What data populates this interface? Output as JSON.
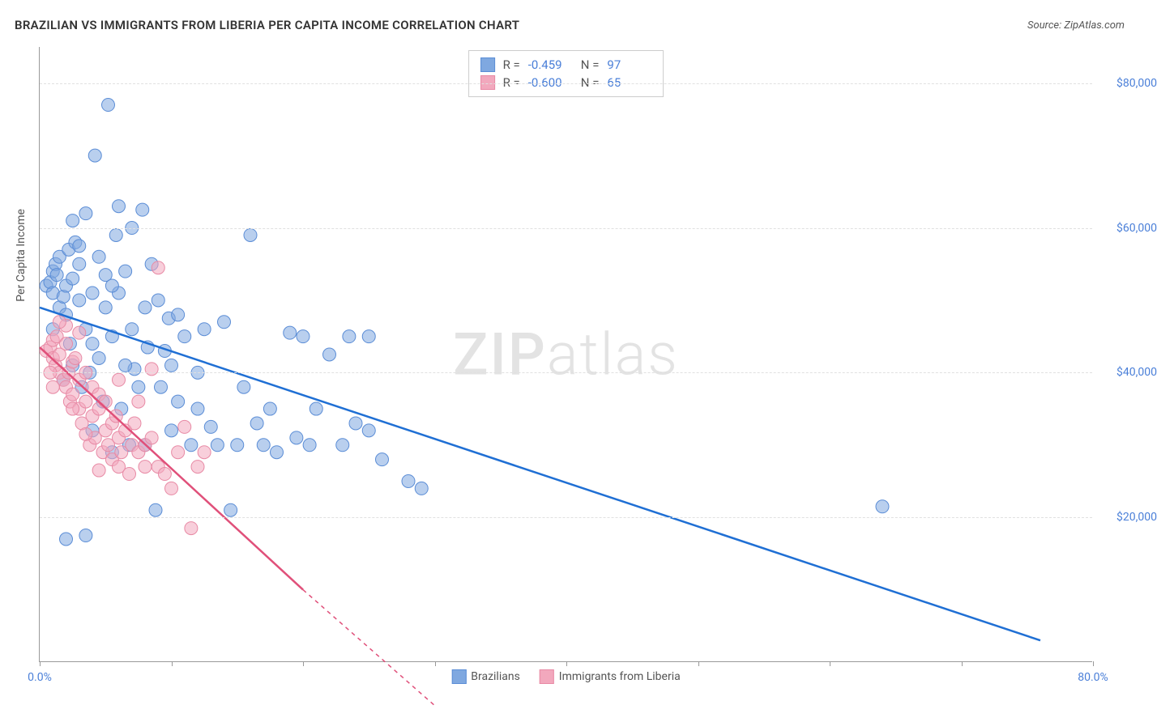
{
  "title": "BRAZILIAN VS IMMIGRANTS FROM LIBERIA PER CAPITA INCOME CORRELATION CHART",
  "source_label": "Source: ZipAtlas.com",
  "y_axis_title": "Per Capita Income",
  "watermark": {
    "part1": "ZIP",
    "part2": "atlas"
  },
  "chart": {
    "type": "scatter",
    "background_color": "#ffffff",
    "grid_color": "#e0e0e0",
    "axis_color": "#999999",
    "tick_label_color": "#4a7fd8",
    "xlim": [
      0,
      80
    ],
    "ylim": [
      0,
      85000
    ],
    "x_tick_positions": [
      0,
      10,
      20,
      30,
      40,
      50,
      60,
      70,
      80
    ],
    "x_tick_labels_shown": {
      "0": "0.0%",
      "80": "80.0%"
    },
    "y_grid_positions": [
      20000,
      40000,
      60000,
      80000
    ],
    "y_tick_labels": {
      "20000": "$20,000",
      "40000": "$40,000",
      "60000": "$60,000",
      "80000": "$80,000"
    },
    "marker_radius": 8,
    "marker_opacity": 0.55,
    "series": [
      {
        "name": "Brazilians",
        "fill_color": "#7fa8e0",
        "stroke_color": "#5b8dd6",
        "trend_color": "#1f6fd4",
        "R": "-0.459",
        "N": "97",
        "trend": {
          "x1": 0,
          "y1": 49000,
          "x2": 76,
          "y2": 3000,
          "dash_from_x": 76
        },
        "points": [
          [
            0.5,
            52000
          ],
          [
            0.8,
            52500
          ],
          [
            1.0,
            51000
          ],
          [
            1.0,
            54000
          ],
          [
            1.2,
            55000
          ],
          [
            1.3,
            53500
          ],
          [
            1.5,
            49000
          ],
          [
            1.5,
            56000
          ],
          [
            1.8,
            50500
          ],
          [
            2.0,
            52000
          ],
          [
            2.0,
            48000
          ],
          [
            2.2,
            57000
          ],
          [
            2.3,
            44000
          ],
          [
            2.5,
            53000
          ],
          [
            2.5,
            61000
          ],
          [
            2.7,
            58000
          ],
          [
            3.0,
            50000
          ],
          [
            3.0,
            55000
          ],
          [
            3.2,
            38000
          ],
          [
            3.5,
            46000
          ],
          [
            3.5,
            62000
          ],
          [
            3.8,
            40000
          ],
          [
            4.0,
            51000
          ],
          [
            4.0,
            32000
          ],
          [
            4.2,
            70000
          ],
          [
            4.5,
            56000
          ],
          [
            4.5,
            42000
          ],
          [
            4.8,
            36000
          ],
          [
            5.0,
            49000
          ],
          [
            5.0,
            53500
          ],
          [
            5.2,
            77000
          ],
          [
            5.5,
            29000
          ],
          [
            5.5,
            45000
          ],
          [
            5.8,
            59000
          ],
          [
            6.0,
            51000
          ],
          [
            6.0,
            63000
          ],
          [
            6.2,
            35000
          ],
          [
            6.5,
            54000
          ],
          [
            6.8,
            30000
          ],
          [
            7.0,
            46000
          ],
          [
            7.0,
            60000
          ],
          [
            7.2,
            40500
          ],
          [
            7.5,
            38000
          ],
          [
            7.8,
            62500
          ],
          [
            8.0,
            49000
          ],
          [
            8.0,
            30000
          ],
          [
            8.2,
            43500
          ],
          [
            8.5,
            55000
          ],
          [
            8.8,
            21000
          ],
          [
            9.0,
            50000
          ],
          [
            9.2,
            38000
          ],
          [
            9.5,
            43000
          ],
          [
            9.8,
            47500
          ],
          [
            10.0,
            32000
          ],
          [
            10.0,
            41000
          ],
          [
            10.5,
            36000
          ],
          [
            10.5,
            48000
          ],
          [
            11.0,
            45000
          ],
          [
            11.5,
            30000
          ],
          [
            12.0,
            35000
          ],
          [
            12.0,
            40000
          ],
          [
            12.5,
            46000
          ],
          [
            13.0,
            32500
          ],
          [
            13.5,
            30000
          ],
          [
            14.0,
            47000
          ],
          [
            14.5,
            21000
          ],
          [
            15.0,
            30000
          ],
          [
            15.5,
            38000
          ],
          [
            16.0,
            59000
          ],
          [
            16.5,
            33000
          ],
          [
            17.0,
            30000
          ],
          [
            17.5,
            35000
          ],
          [
            18.0,
            29000
          ],
          [
            19.0,
            45500
          ],
          [
            19.5,
            31000
          ],
          [
            20.0,
            45000
          ],
          [
            20.5,
            30000
          ],
          [
            21.0,
            35000
          ],
          [
            22.0,
            42500
          ],
          [
            23.0,
            30000
          ],
          [
            23.5,
            45000
          ],
          [
            24.0,
            33000
          ],
          [
            25.0,
            32000
          ],
          [
            25.0,
            45000
          ],
          [
            26.0,
            28000
          ],
          [
            28.0,
            25000
          ],
          [
            29.0,
            24000
          ],
          [
            2.0,
            17000
          ],
          [
            3.5,
            17500
          ],
          [
            64.0,
            21500
          ],
          [
            1.0,
            46000
          ],
          [
            1.8,
            39000
          ],
          [
            2.5,
            41000
          ],
          [
            4.0,
            44000
          ],
          [
            3.0,
            57500
          ],
          [
            5.5,
            52000
          ],
          [
            6.5,
            41000
          ]
        ]
      },
      {
        "name": "Immigrants from Liberia",
        "fill_color": "#f2a8bd",
        "stroke_color": "#e88aa5",
        "trend_color": "#e0507a",
        "R": "-0.600",
        "N": "65",
        "trend": {
          "x1": 0,
          "y1": 43500,
          "x2": 20,
          "y2": 10000,
          "dash_from_x": 20,
          "dash_to_x": 30,
          "dash_to_y": -6000
        },
        "points": [
          [
            0.5,
            43000
          ],
          [
            0.8,
            43500
          ],
          [
            1.0,
            42000
          ],
          [
            1.0,
            44500
          ],
          [
            1.2,
            41000
          ],
          [
            1.3,
            45000
          ],
          [
            1.5,
            40000
          ],
          [
            1.5,
            42500
          ],
          [
            1.8,
            39000
          ],
          [
            2.0,
            44000
          ],
          [
            2.0,
            38000
          ],
          [
            2.2,
            40000
          ],
          [
            2.3,
            36000
          ],
          [
            2.5,
            41500
          ],
          [
            2.5,
            37000
          ],
          [
            2.7,
            42000
          ],
          [
            3.0,
            35000
          ],
          [
            3.0,
            39000
          ],
          [
            3.2,
            33000
          ],
          [
            3.5,
            40000
          ],
          [
            3.5,
            36000
          ],
          [
            3.8,
            30000
          ],
          [
            4.0,
            38000
          ],
          [
            4.0,
            34000
          ],
          [
            4.2,
            31000
          ],
          [
            4.5,
            35000
          ],
          [
            4.5,
            37000
          ],
          [
            4.8,
            29000
          ],
          [
            5.0,
            36000
          ],
          [
            5.0,
            32000
          ],
          [
            5.2,
            30000
          ],
          [
            5.5,
            33000
          ],
          [
            5.5,
            28000
          ],
          [
            5.8,
            34000
          ],
          [
            6.0,
            31000
          ],
          [
            6.0,
            27000
          ],
          [
            6.2,
            29000
          ],
          [
            6.5,
            32000
          ],
          [
            6.8,
            26000
          ],
          [
            7.0,
            30000
          ],
          [
            7.2,
            33000
          ],
          [
            7.5,
            36000
          ],
          [
            7.5,
            29000
          ],
          [
            8.0,
            30000
          ],
          [
            8.0,
            27000
          ],
          [
            8.5,
            40500
          ],
          [
            8.5,
            31000
          ],
          [
            9.0,
            27000
          ],
          [
            9.0,
            54500
          ],
          [
            9.5,
            26000
          ],
          [
            10.0,
            24000
          ],
          [
            10.5,
            29000
          ],
          [
            11.0,
            32500
          ],
          [
            11.5,
            18500
          ],
          [
            12.0,
            27000
          ],
          [
            12.5,
            29000
          ],
          [
            2.0,
            46500
          ],
          [
            1.5,
            47000
          ],
          [
            3.0,
            45500
          ],
          [
            1.0,
            38000
          ],
          [
            0.8,
            40000
          ],
          [
            2.5,
            35000
          ],
          [
            3.5,
            31500
          ],
          [
            4.5,
            26500
          ],
          [
            6.0,
            39000
          ]
        ]
      }
    ]
  },
  "bottom_legend": {
    "items": [
      {
        "label": "Brazilians",
        "fill": "#7fa8e0",
        "stroke": "#5b8dd6"
      },
      {
        "label": "Immigrants from Liberia",
        "fill": "#f2a8bd",
        "stroke": "#e88aa5"
      }
    ]
  }
}
